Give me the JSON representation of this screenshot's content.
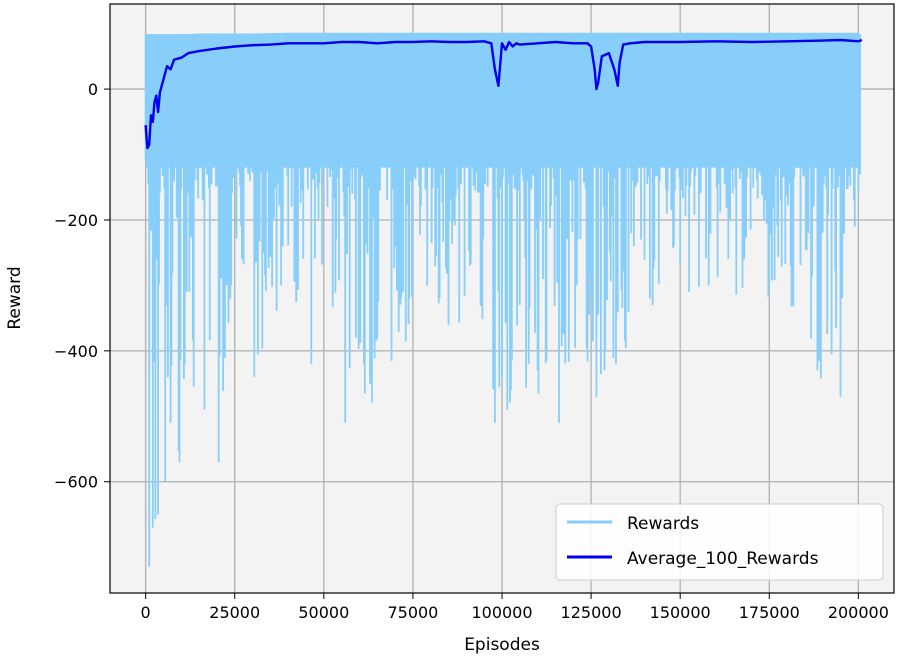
{
  "chart_data": {
    "type": "line",
    "xlabel": "Episodes",
    "ylabel": "Reward",
    "xlim": [
      -10000,
      210000
    ],
    "ylim": [
      -770,
      130
    ],
    "grid": true,
    "legend_placement": "bottom-right",
    "x_ticks": [
      0,
      25000,
      50000,
      75000,
      100000,
      125000,
      150000,
      175000,
      200000
    ],
    "x_tick_labels": [
      "0",
      "25000",
      "50000",
      "75000",
      "100000",
      "125000",
      "150000",
      "175000",
      "200000"
    ],
    "y_ticks": [
      0,
      -200,
      -400,
      -600
    ],
    "y_tick_labels": [
      "0",
      "−200",
      "−400",
      "−600"
    ],
    "colors": {
      "rewards": "#87cefa",
      "average": "#0000ee",
      "plot_background": "#f3f3f3",
      "grid": "#b0b0b0"
    },
    "series": [
      {
        "name": "Rewards",
        "style": "band",
        "x": [
          0,
          1000,
          2000,
          3000,
          4000,
          5000,
          6000,
          8000,
          10000,
          12000,
          15000,
          20000,
          25000,
          30000,
          40000,
          50000,
          60000,
          70000,
          80000,
          90000,
          100000,
          110000,
          120000,
          125000,
          130000,
          140000,
          150000,
          160000,
          170000,
          180000,
          190000,
          200000
        ],
        "upper": [
          80,
          82,
          82,
          82,
          83,
          83,
          83,
          84,
          84,
          84,
          85,
          85,
          85,
          85,
          86,
          86,
          86,
          86,
          86,
          86,
          86,
          86,
          86,
          86,
          86,
          86,
          86,
          86,
          86,
          86,
          86,
          86
        ],
        "lower": [
          -520,
          -730,
          -680,
          -670,
          -640,
          -610,
          -600,
          -560,
          -570,
          -520,
          -460,
          -570,
          -350,
          -440,
          -320,
          -350,
          -520,
          -420,
          -320,
          -390,
          -510,
          -480,
          -510,
          -470,
          -450,
          -350,
          -310,
          -300,
          -330,
          -320,
          -470,
          -200
        ],
        "spikes": [
          [
            1000,
            -730
          ],
          [
            2000,
            -670
          ],
          [
            3500,
            -650
          ],
          [
            5500,
            -600
          ],
          [
            7000,
            -510
          ],
          [
            9500,
            -570
          ],
          [
            11000,
            -420
          ],
          [
            13500,
            -455
          ],
          [
            16500,
            -490
          ],
          [
            20500,
            -570
          ],
          [
            24000,
            -300
          ],
          [
            27000,
            -260
          ],
          [
            30500,
            -440
          ],
          [
            33000,
            -250
          ],
          [
            38000,
            -300
          ],
          [
            41000,
            -180
          ],
          [
            46500,
            -420
          ],
          [
            52500,
            -260
          ],
          [
            56000,
            -510
          ],
          [
            59000,
            -380
          ],
          [
            63000,
            -450
          ],
          [
            70000,
            -240
          ],
          [
            74000,
            -320
          ],
          [
            79000,
            -300
          ],
          [
            85000,
            -360
          ],
          [
            91000,
            -270
          ],
          [
            98000,
            -510
          ],
          [
            101500,
            -490
          ],
          [
            105000,
            -330
          ],
          [
            107500,
            -420
          ],
          [
            110000,
            -430
          ],
          [
            116000,
            -510
          ],
          [
            121000,
            -300
          ],
          [
            124500,
            -345
          ],
          [
            126500,
            -470
          ],
          [
            129000,
            -400
          ],
          [
            132000,
            -420
          ],
          [
            137000,
            -240
          ],
          [
            141500,
            -320
          ],
          [
            148000,
            -220
          ],
          [
            152500,
            -310
          ],
          [
            158000,
            -300
          ],
          [
            164000,
            -200
          ],
          [
            168000,
            -260
          ],
          [
            175000,
            -290
          ],
          [
            181000,
            -270
          ],
          [
            186000,
            -220
          ],
          [
            189000,
            -250
          ],
          [
            192500,
            -405
          ],
          [
            195000,
            -470
          ],
          [
            199000,
            -190
          ],
          [
            200500,
            -130
          ]
        ]
      },
      {
        "name": "Average_100_Rewards",
        "style": "line",
        "x": [
          0,
          500,
          1000,
          1500,
          2000,
          2500,
          3000,
          3500,
          4000,
          4500,
          5000,
          6000,
          7000,
          8000,
          10000,
          12000,
          15000,
          20000,
          25000,
          30000,
          35000,
          40000,
          45000,
          50000,
          55000,
          60000,
          65000,
          70000,
          75000,
          80000,
          85000,
          90000,
          95000,
          97000,
          98000,
          99000,
          100000,
          101000,
          102000,
          103000,
          104000,
          105000,
          110000,
          115000,
          120000,
          124000,
          125000,
          126000,
          126500,
          127000,
          128000,
          130000,
          131500,
          132500,
          133000,
          134000,
          136000,
          140000,
          150000,
          160000,
          170000,
          180000,
          190000,
          195000,
          200000,
          201000
        ],
        "y": [
          -55,
          -90,
          -85,
          -40,
          -50,
          -20,
          -10,
          -35,
          -5,
          5,
          15,
          35,
          30,
          45,
          48,
          55,
          58,
          62,
          65,
          67,
          68,
          70,
          70,
          70,
          72,
          72,
          70,
          72,
          72,
          73,
          72,
          72,
          73,
          70,
          30,
          5,
          70,
          60,
          72,
          65,
          70,
          68,
          70,
          72,
          70,
          70,
          65,
          30,
          0,
          10,
          50,
          55,
          30,
          5,
          40,
          68,
          70,
          72,
          72,
          73,
          72,
          73,
          74,
          75,
          73,
          75
        ]
      }
    ]
  }
}
